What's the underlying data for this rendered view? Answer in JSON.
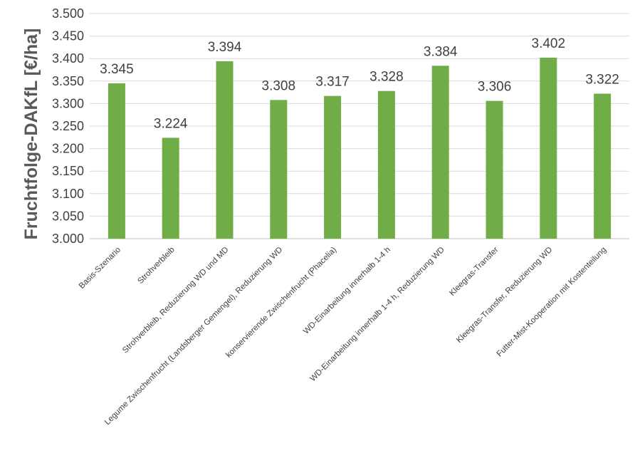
{
  "chart_data": {
    "type": "bar",
    "ylabel": "Fruchtfolge-DAKfL [€/ha]",
    "ylim": [
      3000,
      3500
    ],
    "y_ticks": [
      3000,
      3050,
      3100,
      3150,
      3200,
      3250,
      3300,
      3350,
      3400,
      3450,
      3500
    ],
    "y_tick_labels": [
      "3.000",
      "3.050",
      "3.100",
      "3.150",
      "3.200",
      "3.250",
      "3.300",
      "3.350",
      "3.400",
      "3.450",
      "3.500"
    ],
    "categories": [
      "Basis-Szenario",
      "Strohverbleib",
      "Strohverbleib, Reduzierung WD und MD",
      "Legume Zwischenfrucht (Landsberger Gemengel), Reduzierung WD",
      "konservierende Zwischenfrucht (Phacelia)",
      "WD-Einarbeitung innerhalb 1-4 h",
      "WD-Einarbeitung innerhalb 1-4 h, Reduzierung WD",
      "Kleegras-Transfer",
      "Kleegras-Transfer, Reduzierung WD",
      "Futter-Mist-Kooperation mit Kostenteilung"
    ],
    "values": [
      3345,
      3224,
      3394,
      3308,
      3317,
      3328,
      3384,
      3306,
      3402,
      3322
    ],
    "data_labels": [
      "3.345",
      "3.224",
      "3.394",
      "3.308",
      "3.317",
      "3.328",
      "3.384",
      "3.306",
      "3.402",
      "3.322"
    ],
    "grid": true,
    "legend": "none",
    "bar_color": "#70ad47"
  }
}
